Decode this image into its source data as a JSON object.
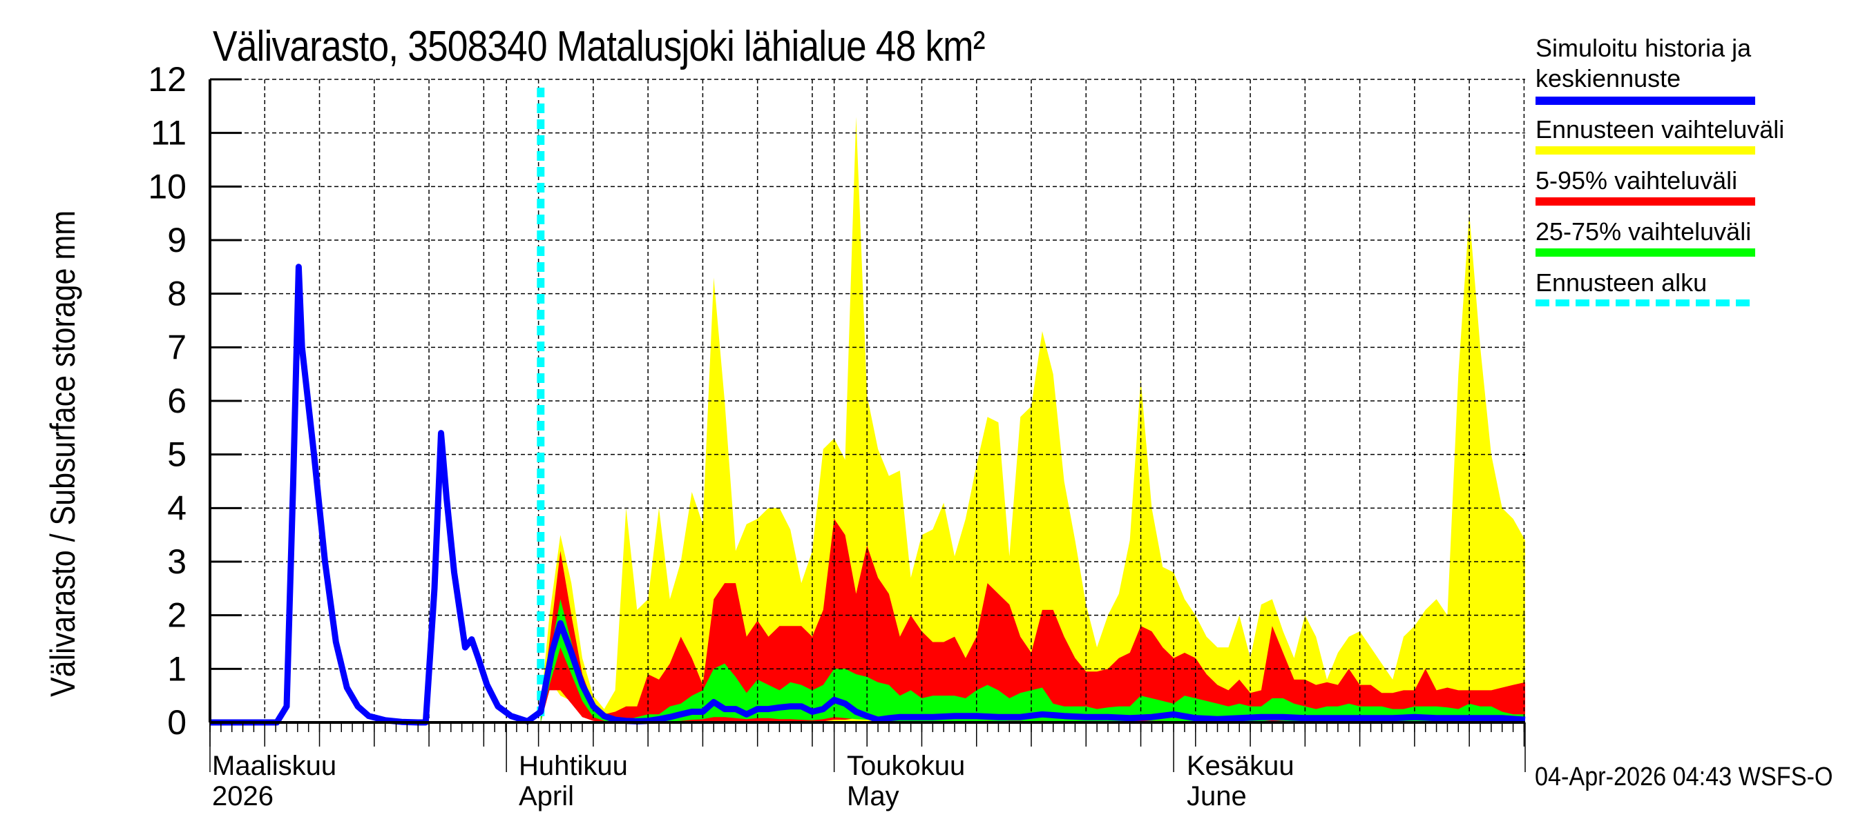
{
  "chart_data": {
    "type": "area",
    "title": "Välivarasto, 3508340 Matalusjoki lähialue 48 km²",
    "ylabel": "Välivarasto / Subsurface storage  mm",
    "xlabel": "",
    "ylim": [
      0,
      12
    ],
    "yticks": [
      0,
      1,
      2,
      3,
      4,
      5,
      6,
      7,
      8,
      9,
      10,
      11,
      12
    ],
    "grid": true,
    "legend_position": "right",
    "x_unit": "days from plot start (≈ 5 Mar 2026)",
    "x_range": [
      0,
      120.1
    ],
    "month_lines": [
      {
        "day": 0,
        "fi": "Maaliskuu",
        "en": "2026"
      },
      {
        "day": 27.07,
        "fi": "Huhtikuu",
        "en": "April"
      },
      {
        "day": 57.0,
        "fi": "Toukokuu",
        "en": "May"
      },
      {
        "day": 88.0,
        "fi": "Kesäkuu",
        "en": "June"
      },
      {
        "day": 120.1,
        "fi": "",
        "en": ""
      }
    ],
    "forecast_start_day": 30.2,
    "series": [
      {
        "name": "Simuloitu historia ja keskiennuste",
        "color": "#0000ff",
        "kind": "line",
        "x": [
          0,
          6.1,
          7.0,
          7.6,
          8.1,
          8.4,
          9.5,
          10.5,
          11.5,
          12.5,
          13.5,
          14.5,
          16,
          17.5,
          19.0,
          19.7,
          20.5,
          21.1,
          21.6,
          22.3,
          23.3,
          23.9,
          24.5,
          25.3,
          26.3,
          27.5,
          29.0,
          30.2,
          31.2,
          32.0,
          33.0,
          34.0,
          35.0,
          36.0,
          37.0,
          38.0,
          39.0,
          40.0,
          41.0,
          42.0,
          43.0,
          44.0,
          45.0,
          46.0,
          47.0,
          48.0,
          49.0,
          50.0,
          51.0,
          52.0,
          53.0,
          54.0,
          55.0,
          56.0,
          57.0,
          58.0,
          59.0,
          60.0,
          61.0,
          62.0,
          63.0,
          64.0,
          66.0,
          68.0,
          70.0,
          72.0,
          74.0,
          76.0,
          78.0,
          80.0,
          82.0,
          84.0,
          86.0,
          88.0,
          90.0,
          92.0,
          94.0,
          96.0,
          98.0,
          100.0,
          102.0,
          104.0,
          106.0,
          108.0,
          110.0,
          112.0,
          114.0,
          116.0,
          118.0,
          120.1
        ],
        "values": [
          0,
          0,
          0.3,
          4.5,
          8.5,
          7.0,
          5.0,
          3.0,
          1.5,
          0.65,
          0.3,
          0.12,
          0.04,
          0.01,
          0.0,
          0.0,
          2.5,
          5.4,
          4.2,
          2.8,
          1.4,
          1.55,
          1.2,
          0.7,
          0.3,
          0.12,
          0.02,
          0.2,
          1.3,
          1.85,
          1.3,
          0.7,
          0.3,
          0.12,
          0.05,
          0.03,
          0.02,
          0.03,
          0.06,
          0.1,
          0.15,
          0.2,
          0.2,
          0.38,
          0.25,
          0.25,
          0.15,
          0.25,
          0.25,
          0.28,
          0.3,
          0.3,
          0.2,
          0.25,
          0.42,
          0.35,
          0.2,
          0.12,
          0.05,
          0.08,
          0.1,
          0.1,
          0.1,
          0.12,
          0.12,
          0.1,
          0.1,
          0.15,
          0.12,
          0.1,
          0.1,
          0.08,
          0.1,
          0.15,
          0.08,
          0.06,
          0.08,
          0.1,
          0.1,
          0.08,
          0.08,
          0.08,
          0.08,
          0.08,
          0.1,
          0.08,
          0.08,
          0.08,
          0.08,
          0.05
        ]
      },
      {
        "name": "Ennusteen vaihteluväli",
        "color": "#ffff00",
        "kind": "band",
        "x": [
          30.2,
          31.0,
          32.0,
          33.0,
          34.0,
          35.0,
          36.0,
          37.0,
          38.0,
          39.0,
          40.0,
          41.0,
          42.0,
          43.0,
          44.0,
          45.0,
          46.0,
          47.0,
          48.0,
          49.0,
          50.0,
          51.0,
          52.0,
          53.0,
          54.0,
          55.0,
          56.0,
          57.0,
          58.0,
          59.0,
          60.0,
          61.0,
          62.0,
          63.0,
          64.0,
          65.0,
          66.0,
          67.0,
          68.0,
          69.0,
          70.0,
          71.0,
          72.0,
          73.0,
          74.0,
          75.0,
          76.0,
          77.0,
          78.0,
          79.0,
          80.0,
          81.0,
          82.0,
          83.0,
          84.0,
          85.0,
          86.0,
          87.0,
          88.0,
          89.0,
          90.0,
          91.0,
          92.0,
          93.0,
          94.0,
          95.0,
          96.0,
          97.0,
          98.0,
          99.0,
          100.0,
          101.0,
          102.0,
          103.0,
          104.0,
          105.0,
          106.0,
          107.0,
          108.0,
          109.0,
          110.0,
          111.0,
          112.0,
          113.0,
          114.0,
          115.0,
          116.0,
          117.0,
          118.0,
          119.0,
          120.1
        ],
        "upper": [
          0.3,
          2.0,
          3.5,
          2.6,
          1.2,
          0.5,
          0.25,
          0.6,
          4.0,
          2.1,
          2.3,
          4.0,
          2.3,
          3.0,
          4.3,
          3.7,
          8.3,
          6.0,
          3.2,
          3.7,
          3.8,
          4.0,
          4.0,
          3.6,
          2.6,
          3.2,
          5.1,
          5.3,
          4.9,
          11.3,
          6.1,
          5.1,
          4.6,
          4.7,
          2.7,
          3.5,
          3.6,
          4.1,
          3.1,
          3.8,
          4.8,
          5.7,
          5.6,
          3.1,
          5.7,
          5.9,
          7.3,
          6.5,
          4.5,
          3.4,
          2.2,
          1.4,
          2.0,
          2.4,
          3.4,
          6.4,
          4.0,
          2.9,
          2.8,
          2.3,
          2.0,
          1.6,
          1.4,
          1.4,
          2.0,
          1.2,
          2.2,
          2.3,
          1.7,
          1.2,
          2.0,
          1.6,
          0.8,
          1.3,
          1.6,
          1.7,
          1.4,
          1.1,
          0.8,
          1.6,
          1.8,
          2.1,
          2.3,
          2.0,
          6.5,
          9.5,
          7.0,
          5.0,
          4.0,
          3.8,
          3.4
        ],
        "lower": [
          0.0,
          0.8,
          0.5,
          0.4,
          0.15,
          0.05,
          0.02,
          0.01,
          0.0,
          0.0,
          0.0,
          0.0,
          0.0,
          0.0,
          0.0,
          0.0,
          0.0,
          0.0,
          0.0,
          0.0,
          0.0,
          0.0,
          0.0,
          0.0,
          0.0,
          0.0,
          0.0,
          0.0,
          0.0,
          0.0,
          0.0,
          0.0,
          0.0,
          0.0,
          0.0,
          0.0,
          0.0,
          0.0,
          0.0,
          0.0,
          0.0,
          0.0,
          0.0,
          0.0,
          0.0,
          0.0,
          0.0,
          0.0,
          0.0,
          0.0,
          0.0,
          0.0,
          0.0,
          0.0,
          0.0,
          0.0,
          0.0,
          0.0,
          0.0,
          0.0,
          0.0,
          0.0,
          0.0,
          0.0,
          0.0,
          0.0,
          0.0,
          0.0,
          0.0,
          0.0,
          0.0,
          0.0,
          0.0,
          0.0,
          0.0,
          0.0,
          0.0,
          0.0,
          0.0,
          0.0,
          0.0,
          0.0,
          0.0,
          0.0,
          0.0,
          0.0,
          0.0,
          0.0,
          0.0,
          0.0,
          0.0
        ]
      },
      {
        "name": "5-95% vaihteluväli",
        "color": "#ff0000",
        "kind": "band",
        "x": [
          30.2,
          31.0,
          32.0,
          33.0,
          34.0,
          35.0,
          36.0,
          37.0,
          38.0,
          39.0,
          40.0,
          41.0,
          42.0,
          43.0,
          44.0,
          45.0,
          46.0,
          47.0,
          48.0,
          49.0,
          50.0,
          51.0,
          52.0,
          53.0,
          54.0,
          55.0,
          56.0,
          57.0,
          58.0,
          59.0,
          60.0,
          61.0,
          62.0,
          63.0,
          64.0,
          65.0,
          66.0,
          67.0,
          68.0,
          69.0,
          70.0,
          71.0,
          72.0,
          73.0,
          74.0,
          75.0,
          76.0,
          77.0,
          78.0,
          79.0,
          80.0,
          81.0,
          82.0,
          83.0,
          84.0,
          85.0,
          86.0,
          87.0,
          88.0,
          89.0,
          90.0,
          91.0,
          92.0,
          93.0,
          94.0,
          95.0,
          96.0,
          97.0,
          98.0,
          99.0,
          100.0,
          101.0,
          102.0,
          103.0,
          104.0,
          105.0,
          106.0,
          107.0,
          108.0,
          109.0,
          110.0,
          111.0,
          112.0,
          113.0,
          114.0,
          115.0,
          116.0,
          117.0,
          118.0,
          119.0,
          120.1
        ],
        "upper": [
          0.2,
          1.5,
          3.2,
          2.0,
          0.9,
          0.35,
          0.15,
          0.2,
          0.3,
          0.3,
          0.9,
          0.8,
          1.1,
          1.6,
          1.2,
          0.7,
          2.3,
          2.6,
          2.6,
          1.6,
          1.9,
          1.6,
          1.8,
          1.8,
          1.8,
          1.6,
          2.1,
          3.8,
          3.5,
          2.4,
          3.3,
          2.7,
          2.4,
          1.6,
          2.0,
          1.7,
          1.5,
          1.5,
          1.6,
          1.2,
          1.6,
          2.6,
          2.4,
          2.2,
          1.6,
          1.3,
          2.1,
          2.1,
          1.6,
          1.2,
          0.95,
          0.95,
          1.0,
          1.2,
          1.3,
          1.8,
          1.7,
          1.4,
          1.2,
          1.3,
          1.2,
          0.9,
          0.7,
          0.6,
          0.8,
          0.55,
          0.6,
          1.8,
          1.3,
          0.8,
          0.8,
          0.7,
          0.75,
          0.7,
          1.0,
          0.7,
          0.7,
          0.55,
          0.55,
          0.6,
          0.6,
          1.0,
          0.6,
          0.65,
          0.6,
          0.6,
          0.6,
          0.6,
          0.65,
          0.7,
          0.75
        ],
        "lower": [
          0.0,
          0.6,
          0.6,
          0.35,
          0.1,
          0.03,
          0.01,
          0.0,
          0.0,
          0.0,
          0.0,
          0.0,
          0.0,
          0.0,
          0.0,
          0.0,
          0.0,
          0.0,
          0.0,
          0.0,
          0.0,
          0.0,
          0.0,
          0.0,
          0.0,
          0.0,
          0.02,
          0.05,
          0.05,
          0.08,
          0.06,
          0.03,
          0.01,
          0.0,
          0.0,
          0.0,
          0.0,
          0.0,
          0.0,
          0.0,
          0.0,
          0.0,
          0.0,
          0.0,
          0.0,
          0.0,
          0.0,
          0.0,
          0.0,
          0.0,
          0.0,
          0.0,
          0.0,
          0.0,
          0.0,
          0.0,
          0.0,
          0.0,
          0.0,
          0.0,
          0.0,
          0.0,
          0.0,
          0.0,
          0.0,
          0.0,
          0.0,
          0.0,
          0.0,
          0.0,
          0.0,
          0.0,
          0.0,
          0.0,
          0.0,
          0.0,
          0.0,
          0.0,
          0.0,
          0.0,
          0.0,
          0.0,
          0.0,
          0.0,
          0.0,
          0.0,
          0.0,
          0.0,
          0.0,
          0.0,
          0.0
        ]
      },
      {
        "name": "25-75% vaihteluväli",
        "color": "#00ff00",
        "kind": "band",
        "x": [
          30.2,
          31.0,
          32.0,
          33.0,
          34.0,
          35.0,
          36.0,
          37.0,
          38.0,
          39.0,
          40.0,
          41.0,
          42.0,
          43.0,
          44.0,
          45.0,
          46.0,
          47.0,
          48.0,
          49.0,
          50.0,
          51.0,
          52.0,
          53.0,
          54.0,
          55.0,
          56.0,
          57.0,
          58.0,
          59.0,
          60.0,
          61.0,
          62.0,
          63.0,
          64.0,
          65.0,
          66.0,
          67.0,
          68.0,
          69.0,
          70.0,
          71.0,
          72.0,
          73.0,
          74.0,
          75.0,
          76.0,
          77.0,
          78.0,
          79.0,
          80.0,
          81.0,
          82.0,
          83.0,
          84.0,
          85.0,
          86.0,
          87.0,
          88.0,
          89.0,
          90.0,
          91.0,
          92.0,
          93.0,
          94.0,
          95.0,
          96.0,
          97.0,
          98.0,
          99.0,
          100.0,
          101.0,
          102.0,
          103.0,
          104.0,
          105.0,
          106.0,
          107.0,
          108.0,
          109.0,
          110.0,
          111.0,
          112.0,
          113.0,
          114.0,
          115.0,
          116.0,
          117.0,
          118.0,
          119.0,
          120.1
        ],
        "upper": [
          0.1,
          1.2,
          2.3,
          1.5,
          0.7,
          0.25,
          0.08,
          0.04,
          0.05,
          0.1,
          0.15,
          0.15,
          0.3,
          0.35,
          0.5,
          0.6,
          1.0,
          1.1,
          0.85,
          0.55,
          0.8,
          0.7,
          0.6,
          0.75,
          0.7,
          0.6,
          0.7,
          1.0,
          1.0,
          0.9,
          0.85,
          0.75,
          0.7,
          0.5,
          0.6,
          0.45,
          0.5,
          0.5,
          0.5,
          0.45,
          0.6,
          0.7,
          0.6,
          0.45,
          0.55,
          0.6,
          0.65,
          0.35,
          0.3,
          0.3,
          0.3,
          0.25,
          0.28,
          0.3,
          0.3,
          0.5,
          0.45,
          0.4,
          0.35,
          0.5,
          0.45,
          0.4,
          0.35,
          0.3,
          0.35,
          0.3,
          0.3,
          0.45,
          0.45,
          0.35,
          0.3,
          0.25,
          0.3,
          0.3,
          0.35,
          0.3,
          0.3,
          0.3,
          0.25,
          0.25,
          0.3,
          0.3,
          0.3,
          0.28,
          0.25,
          0.35,
          0.3,
          0.3,
          0.2,
          0.15,
          0.15
        ],
        "lower": [
          0.0,
          0.7,
          1.4,
          0.9,
          0.4,
          0.1,
          0.03,
          0.01,
          0.0,
          0.0,
          0.0,
          0.0,
          0.02,
          0.03,
          0.05,
          0.06,
          0.1,
          0.1,
          0.08,
          0.06,
          0.08,
          0.08,
          0.06,
          0.06,
          0.05,
          0.04,
          0.06,
          0.1,
          0.08,
          0.06,
          0.05,
          0.05,
          0.03,
          0.02,
          0.02,
          0.02,
          0.02,
          0.02,
          0.02,
          0.02,
          0.02,
          0.03,
          0.02,
          0.03,
          0.03,
          0.02,
          0.03,
          0.02,
          0.02,
          0.02,
          0.02,
          0.02,
          0.02,
          0.02,
          0.02,
          0.04,
          0.03,
          0.03,
          0.02,
          0.02,
          0.02,
          0.02,
          0.02,
          0.02,
          0.02,
          0.02,
          0.02,
          0.04,
          0.03,
          0.02,
          0.02,
          0.02,
          0.02,
          0.02,
          0.02,
          0.02,
          0.02,
          0.02,
          0.02,
          0.02,
          0.02,
          0.02,
          0.02,
          0.02,
          0.02,
          0.02,
          0.02,
          0.02,
          0.02,
          0.02,
          0.02
        ]
      },
      {
        "name": "Ennusteen alku",
        "color": "#00ffff",
        "kind": "vline",
        "x": [
          30.2
        ]
      }
    ]
  },
  "header": {
    "title": "Välivarasto, 3508340 Matalusjoki lähialue 48 km²"
  },
  "axes": {
    "ylabel": "Välivarasto / Subsurface storage  mm",
    "ytick_labels": [
      "0",
      "1",
      "2",
      "3",
      "4",
      "5",
      "6",
      "7",
      "8",
      "9",
      "10",
      "11",
      "12"
    ],
    "months": [
      {
        "fi": "Maaliskuu",
        "en": "2026"
      },
      {
        "fi": "Huhtikuu",
        "en": "April"
      },
      {
        "fi": "Toukokuu",
        "en": "May"
      },
      {
        "fi": "Kesäkuu",
        "en": "June"
      }
    ]
  },
  "legend": {
    "items": [
      {
        "label_line1": "Simuloitu historia ja",
        "label_line2": "keskiennuste",
        "color": "#0000ff"
      },
      {
        "label_line1": "Ennusteen vaihteluväli",
        "color": "#ffff00"
      },
      {
        "label_line1": "5-95% vaihteluväli",
        "color": "#ff0000"
      },
      {
        "label_line1": "25-75% vaihteluväli",
        "color": "#00ff00"
      },
      {
        "label_line1": "Ennusteen alku",
        "color": "#00ffff"
      }
    ]
  },
  "footer": {
    "timestamp": "04-Apr-2026 04:43 WSFS-O"
  }
}
